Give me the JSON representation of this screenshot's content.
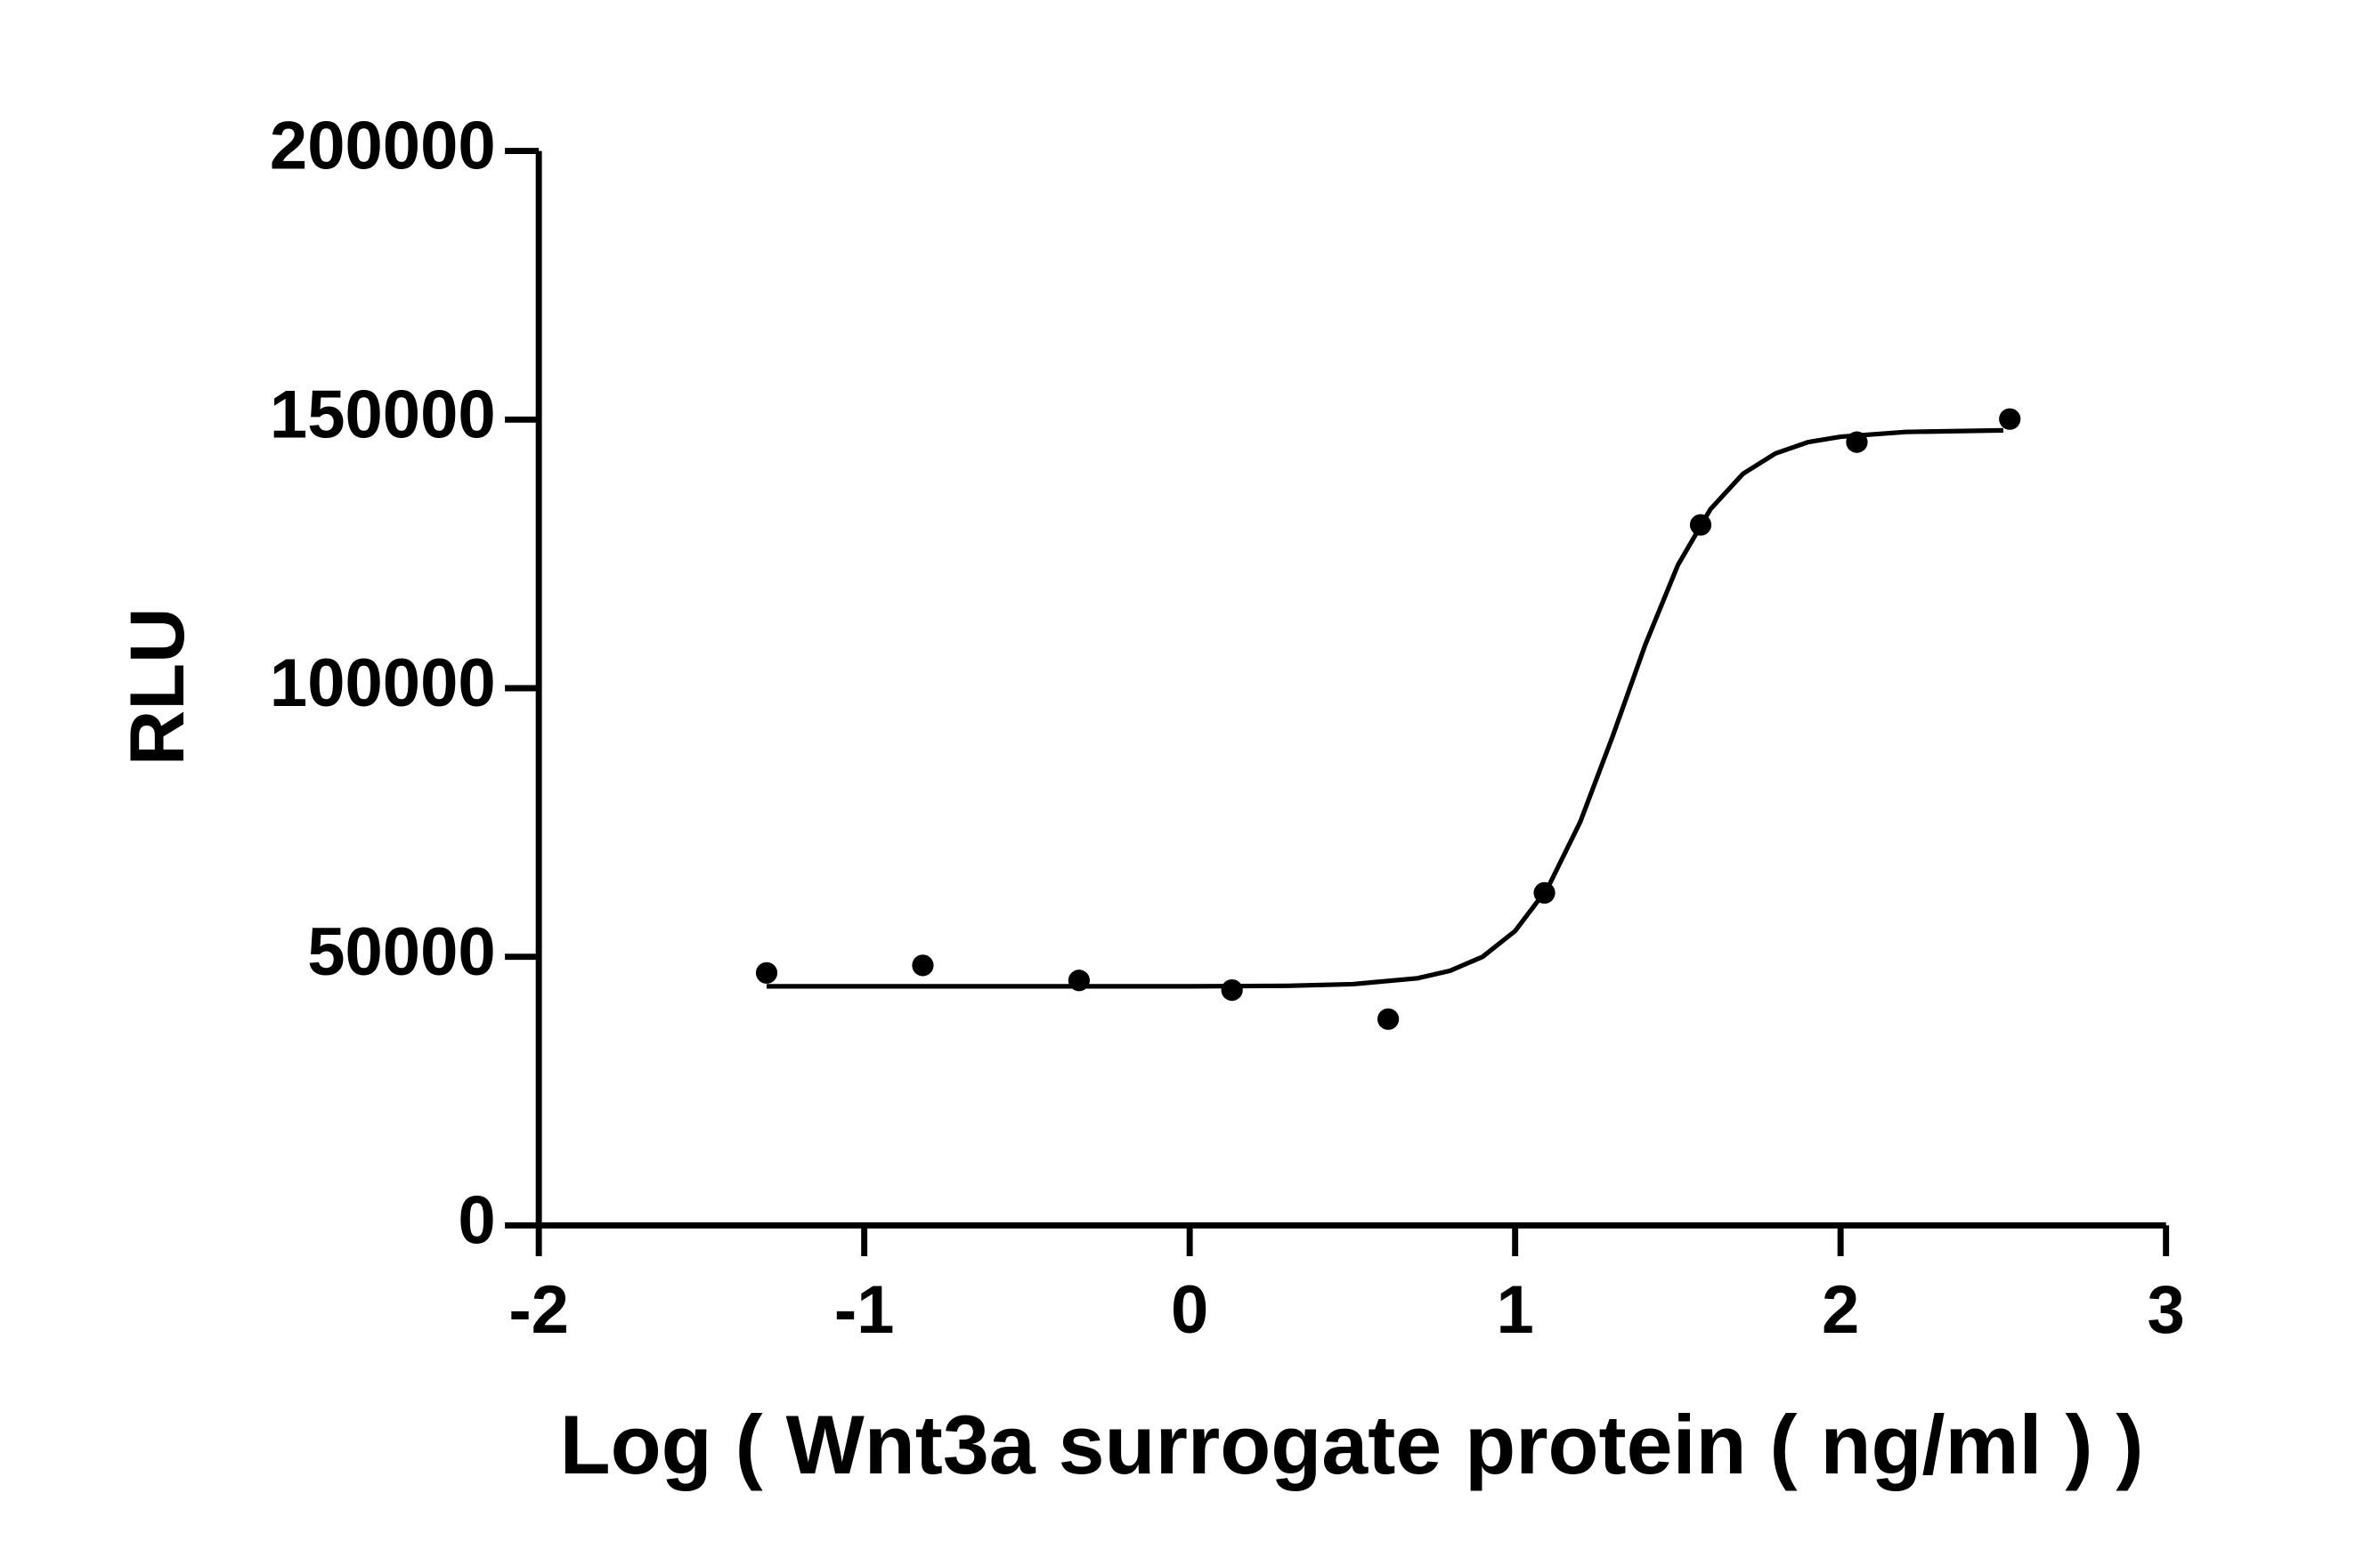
{
  "chart_data": {
    "type": "scatter",
    "x_label": "Log ( Wnt3a surrogate protein ( ng/ml )    )",
    "y_label": "RLU",
    "xlim": [
      -2,
      3
    ],
    "xticks": [
      -2,
      -1,
      0,
      1,
      2,
      3
    ],
    "ylim": [
      0,
      200000
    ],
    "yticks": [
      0,
      50000,
      100000,
      150000,
      200000
    ],
    "grid": false,
    "series": [
      {
        "color": "#000000",
        "x": [
          -1.3,
          -0.82,
          -0.34,
          0.13,
          0.61,
          1.09,
          1.57,
          2.05,
          2.52
        ],
        "values": [
          47000,
          48400,
          45600,
          43800,
          38400,
          61900,
          130400,
          145800,
          150100
        ]
      }
    ],
    "fit": {
      "color": "#000000",
      "x": [
        -1.3,
        -0.5,
        0,
        0.3,
        0.5,
        0.7,
        0.8,
        0.9,
        1.0,
        1.1,
        1.2,
        1.3,
        1.4,
        1.5,
        1.6,
        1.7,
        1.8,
        1.9,
        2.0,
        2.2,
        2.5
      ],
      "values": [
        44500,
        44500,
        44500,
        44600,
        44900,
        46000,
        47400,
        50000,
        54800,
        62800,
        75100,
        91100,
        108100,
        122900,
        133300,
        139900,
        143700,
        145800,
        146800,
        147700,
        148000
      ]
    }
  }
}
